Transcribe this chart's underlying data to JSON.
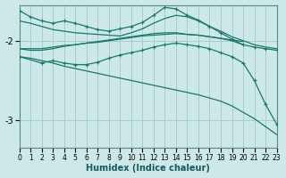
{
  "xlabel": "Humidex (Indice chaleur)",
  "background_color": "#cce8e8",
  "grid_color": "#a8cccc",
  "line_color": "#1a7868",
  "xlim": [
    0,
    23
  ],
  "ylim": [
    -3.35,
    -1.55
  ],
  "yticks": [
    -3,
    -2
  ],
  "xticks": [
    0,
    1,
    2,
    3,
    4,
    5,
    6,
    7,
    8,
    9,
    10,
    11,
    12,
    13,
    14,
    15,
    16,
    17,
    18,
    19,
    20,
    21,
    22,
    23
  ],
  "line1_x": [
    0,
    1,
    2,
    3,
    4,
    5,
    6,
    7,
    8,
    9,
    10,
    11,
    12,
    13,
    14,
    15,
    16,
    17,
    18,
    19,
    20,
    21,
    22,
    23
  ],
  "line1_y": [
    -1.75,
    -1.78,
    -1.82,
    -1.86,
    -1.88,
    -1.9,
    -1.91,
    -1.92,
    -1.93,
    -1.94,
    -1.9,
    -1.85,
    -1.78,
    -1.72,
    -1.68,
    -1.7,
    -1.75,
    -1.82,
    -1.88,
    -1.95,
    -2.0,
    -2.05,
    -2.08,
    -2.1
  ],
  "line2_x": [
    0,
    1,
    2,
    3,
    4,
    5,
    6,
    7,
    8,
    9,
    10,
    11,
    12,
    13,
    14,
    15,
    16,
    17,
    18,
    19,
    20
  ],
  "line2_y": [
    -2.1,
    -2.1,
    -2.1,
    -2.08,
    -2.06,
    -2.05,
    -2.03,
    -2.02,
    -2.0,
    -1.98,
    -1.96,
    -1.94,
    -1.93,
    -1.92,
    -1.91,
    -1.92,
    -1.93,
    -1.95,
    -1.97,
    -1.99,
    -2.01
  ],
  "line3_x": [
    0,
    1,
    2,
    3,
    4,
    5,
    6,
    7,
    8,
    9,
    10,
    11,
    12,
    13,
    14,
    15,
    16,
    17,
    18,
    19,
    20
  ],
  "line3_y": [
    -2.1,
    -2.12,
    -2.12,
    -2.1,
    -2.07,
    -2.05,
    -2.03,
    -2.01,
    -1.99,
    -1.97,
    -1.95,
    -1.93,
    -1.91,
    -1.9,
    -1.9,
    -1.92,
    -1.93,
    -1.95,
    -1.97,
    -2.0,
    -2.05
  ],
  "line4_x": [
    0,
    1,
    2,
    3,
    4,
    5,
    6,
    7,
    8,
    9,
    10,
    11,
    12,
    13,
    14,
    15,
    16,
    17,
    18,
    19,
    20,
    21,
    22,
    23
  ],
  "line4_y": [
    -1.62,
    -1.7,
    -1.75,
    -1.78,
    -1.75,
    -1.78,
    -1.82,
    -1.86,
    -1.88,
    -1.85,
    -1.82,
    -1.77,
    -1.68,
    -1.58,
    -1.6,
    -1.68,
    -1.74,
    -1.82,
    -1.9,
    -1.98,
    -2.05,
    -2.08,
    -2.1,
    -2.12
  ],
  "line5_x": [
    0,
    2,
    3,
    4,
    5,
    6,
    7,
    8,
    9,
    10,
    11,
    12,
    13,
    14,
    15,
    16,
    17,
    18,
    19,
    20,
    21,
    22,
    23
  ],
  "line5_y": [
    -2.2,
    -2.28,
    -2.25,
    -2.28,
    -2.3,
    -2.3,
    -2.27,
    -2.22,
    -2.18,
    -2.15,
    -2.12,
    -2.08,
    -2.05,
    -2.03,
    -2.05,
    -2.07,
    -2.1,
    -2.15,
    -2.2,
    -2.28,
    -2.5,
    -2.8,
    -3.05
  ],
  "line6_x": [
    0,
    1,
    2,
    3,
    4,
    5,
    6,
    7,
    8,
    9,
    10,
    11,
    12,
    13,
    14,
    15,
    16,
    17,
    18,
    19,
    20,
    21,
    22,
    23
  ],
  "line6_y": [
    -2.2,
    -2.22,
    -2.25,
    -2.28,
    -2.32,
    -2.35,
    -2.38,
    -2.41,
    -2.44,
    -2.47,
    -2.5,
    -2.53,
    -2.56,
    -2.59,
    -2.62,
    -2.65,
    -2.68,
    -2.72,
    -2.76,
    -2.82,
    -2.9,
    -2.98,
    -3.08,
    -3.18
  ]
}
